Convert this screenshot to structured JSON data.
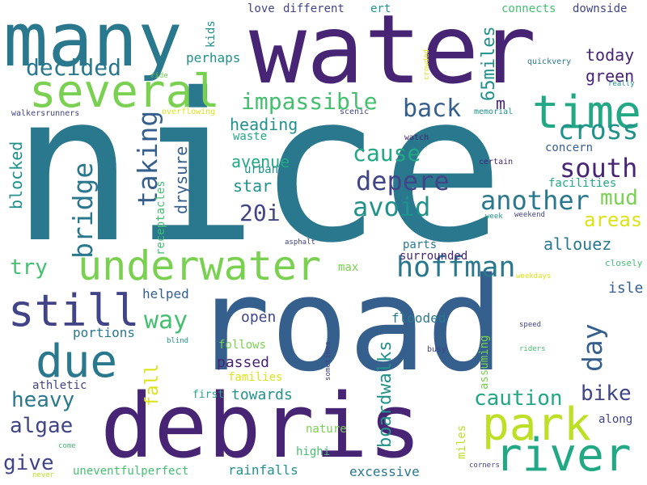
{
  "palette": {
    "navy": "#482475",
    "indigo": "#414487",
    "slate_blue": "#355f8d",
    "teal_blue": "#2a788e",
    "teal": "#21918c",
    "sea_green": "#22a884",
    "green": "#44bf70",
    "light_green": "#7ad151",
    "yellow_green": "#bddf26",
    "yellow": "#dde318"
  },
  "words": [
    {
      "text": "nice",
      "color": "#2a788e"
    },
    {
      "text": "road",
      "color": "#355f8d"
    },
    {
      "text": "water",
      "color": "#482475"
    },
    {
      "text": "debris",
      "color": "#482475"
    },
    {
      "text": "many",
      "color": "#2a788e"
    },
    {
      "text": "several",
      "color": "#7ad151"
    },
    {
      "text": "underwater",
      "color": "#7ad151"
    },
    {
      "text": "time",
      "color": "#22a884"
    },
    {
      "text": "park",
      "color": "#bddf26"
    },
    {
      "text": "river",
      "color": "#22a884"
    },
    {
      "text": "still",
      "color": "#414487"
    },
    {
      "text": "due",
      "color": "#2a788e"
    },
    {
      "text": "hoffman",
      "color": "#2a788e"
    },
    {
      "text": "day",
      "color": "#355f8d"
    },
    {
      "text": "cross",
      "color": "#21918c"
    },
    {
      "text": "south",
      "color": "#482475"
    },
    {
      "text": "another",
      "color": "#2a788e"
    },
    {
      "text": "depere",
      "color": "#414487"
    },
    {
      "text": "avoid",
      "color": "#21918c"
    },
    {
      "text": "cause",
      "color": "#22a884"
    },
    {
      "text": "taking",
      "color": "#355f8d"
    },
    {
      "text": "bridge",
      "color": "#2a788e"
    },
    {
      "text": "impassible",
      "color": "#44bf70"
    },
    {
      "text": "back",
      "color": "#355f8d"
    },
    {
      "text": "decided",
      "color": "#2a788e"
    },
    {
      "text": "caution",
      "color": "#22a884"
    },
    {
      "text": "heavy",
      "color": "#2a788e"
    },
    {
      "text": "algae",
      "color": "#414487"
    },
    {
      "text": "give",
      "color": "#414487"
    },
    {
      "text": "way",
      "color": "#44bf70"
    },
    {
      "text": "fall",
      "color": "#dde318"
    },
    {
      "text": "try",
      "color": "#44bf70"
    },
    {
      "text": "bike",
      "color": "#414487"
    },
    {
      "text": "mud",
      "color": "#7ad151"
    },
    {
      "text": "areas",
      "color": "#dde318"
    },
    {
      "text": "20i",
      "color": "#414487"
    },
    {
      "text": "allouez",
      "color": "#2a788e"
    },
    {
      "text": "boardwalks",
      "color": "#21918c"
    },
    {
      "text": "65miles",
      "color": "#21918c"
    },
    {
      "text": "today",
      "color": "#482475"
    },
    {
      "text": "green",
      "color": "#482475"
    },
    {
      "text": "m",
      "color": "#482475"
    },
    {
      "text": "heading",
      "color": "#21918c"
    },
    {
      "text": "avenue",
      "color": "#22a884"
    },
    {
      "text": "star",
      "color": "#21918c"
    },
    {
      "text": "drysure",
      "color": "#355f8d"
    },
    {
      "text": "blocked",
      "color": "#21918c"
    },
    {
      "text": "receptacles",
      "color": "#44bf70"
    },
    {
      "text": "waste",
      "color": "#22a884"
    },
    {
      "text": "urban",
      "color": "#21918c"
    },
    {
      "text": "perhaps",
      "color": "#21918c"
    },
    {
      "text": "kids",
      "color": "#21918c"
    },
    {
      "text": "love",
      "color": "#414487"
    },
    {
      "text": "different",
      "color": "#414487"
    },
    {
      "text": "ert",
      "color": "#21918c"
    },
    {
      "text": "connects",
      "color": "#44bf70"
    },
    {
      "text": "downside",
      "color": "#414487"
    },
    {
      "text": "crowded",
      "color": "#dde318"
    },
    {
      "text": "quickvery",
      "color": "#2a788e"
    },
    {
      "text": "ride",
      "color": "#7ad151"
    },
    {
      "text": "really",
      "color": "#21918c"
    },
    {
      "text": "walkersrunners",
      "color": "#414487"
    },
    {
      "text": "overflowing",
      "color": "#dde318"
    },
    {
      "text": "scenic",
      "color": "#414487"
    },
    {
      "text": "memorial",
      "color": "#21918c"
    },
    {
      "text": "watch",
      "color": "#482475"
    },
    {
      "text": "concern",
      "color": "#355f8d"
    },
    {
      "text": "certain",
      "color": "#482475"
    },
    {
      "text": "facilities",
      "color": "#22a884"
    },
    {
      "text": "week",
      "color": "#21918c"
    },
    {
      "text": "weekend",
      "color": "#414487"
    },
    {
      "text": "asphalt",
      "color": "#414487"
    },
    {
      "text": "parts",
      "color": "#2a788e"
    },
    {
      "text": "surrounded",
      "color": "#482475"
    },
    {
      "text": "max",
      "color": "#7ad151"
    },
    {
      "text": "closely",
      "color": "#44bf70"
    },
    {
      "text": "weekdays",
      "color": "#dde318"
    },
    {
      "text": "isle",
      "color": "#355f8d"
    },
    {
      "text": "helped",
      "color": "#355f8d"
    },
    {
      "text": "open",
      "color": "#414487"
    },
    {
      "text": "flooded",
      "color": "#2a788e"
    },
    {
      "text": "assuming",
      "color": "#7ad151"
    },
    {
      "text": "portions",
      "color": "#2a788e"
    },
    {
      "text": "athletic",
      "color": "#414487"
    },
    {
      "text": "blind",
      "color": "#21918c"
    },
    {
      "text": "follows",
      "color": "#7ad151"
    },
    {
      "text": "passed",
      "color": "#482475"
    },
    {
      "text": "families",
      "color": "#dde318"
    },
    {
      "text": "sometimes",
      "color": "#414487"
    },
    {
      "text": "speed",
      "color": "#414487"
    },
    {
      "text": "riders",
      "color": "#44bf70"
    },
    {
      "text": "busy",
      "color": "#414487"
    },
    {
      "text": "first",
      "color": "#22a884"
    },
    {
      "text": "towards",
      "color": "#21918c"
    },
    {
      "text": "nature",
      "color": "#7ad151"
    },
    {
      "text": "miles",
      "color": "#bddf26"
    },
    {
      "text": "along",
      "color": "#414487"
    },
    {
      "text": "uneventfulperfect",
      "color": "#44bf70"
    },
    {
      "text": "rainfalls",
      "color": "#21918c"
    },
    {
      "text": "highi",
      "color": "#44bf70"
    },
    {
      "text": "excessive",
      "color": "#2a788e"
    },
    {
      "text": "corners",
      "color": "#414487"
    },
    {
      "text": "come",
      "color": "#44bf70"
    },
    {
      "text": "never",
      "color": "#bddf26"
    }
  ]
}
